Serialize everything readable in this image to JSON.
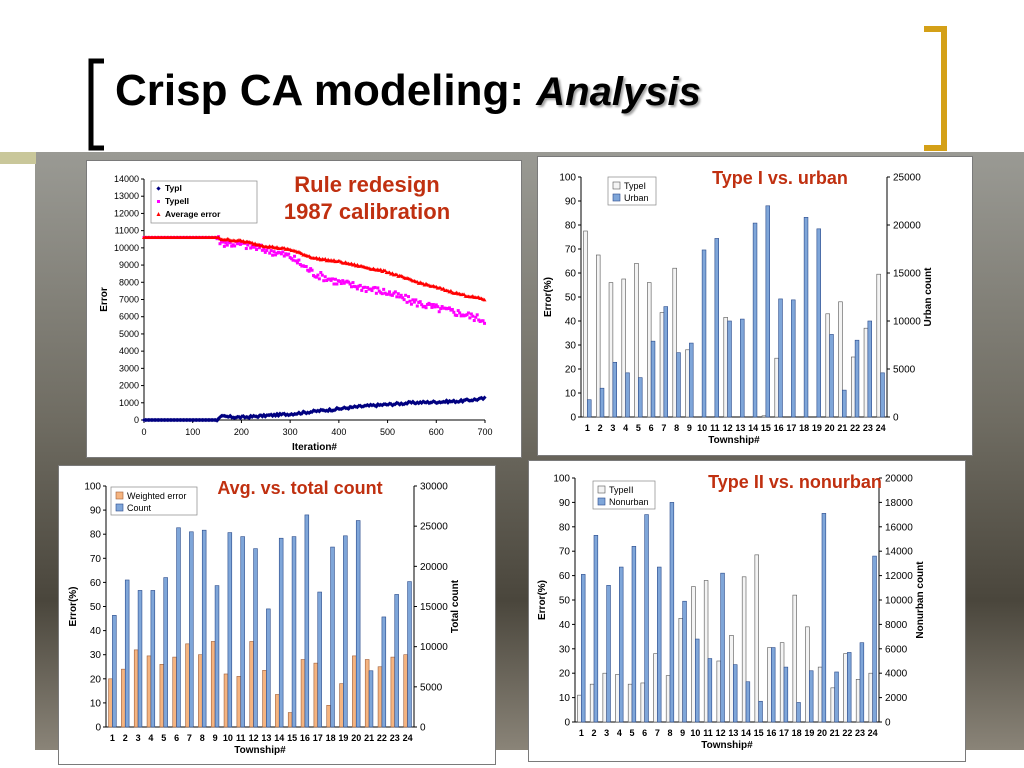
{
  "slide": {
    "title_main": "Crisp CA modeling:",
    "title_emph": "Analysis",
    "colors": {
      "bracket_left": "#000000",
      "bracket_right": "#d4a017",
      "accent": "#c9c79a",
      "red_title": "#c03010"
    }
  },
  "chart_data": [
    {
      "id": "rule-redesign",
      "type": "scatter",
      "title": "Rule redesign\n1987 calibration",
      "xlabel": "Iteration#",
      "ylabel": "Error",
      "xlim": [
        0,
        700
      ],
      "ylim": [
        0,
        14000
      ],
      "xticks": [
        0,
        100,
        200,
        300,
        400,
        500,
        600,
        700
      ],
      "yticks": [
        0,
        1000,
        2000,
        3000,
        4000,
        5000,
        6000,
        7000,
        8000,
        9000,
        10000,
        11000,
        12000,
        13000,
        14000
      ],
      "legend_position": "top-left",
      "series": [
        {
          "name": "TypI",
          "color": "#000080",
          "marker": "diamond",
          "x": [
            0,
            150,
            160,
            200,
            250,
            300,
            350,
            400,
            450,
            500,
            550,
            600,
            650,
            700
          ],
          "y": [
            0,
            0,
            200,
            150,
            250,
            350,
            500,
            650,
            800,
            900,
            1000,
            1050,
            1100,
            1250
          ]
        },
        {
          "name": "TypeII",
          "color": "#ff00ff",
          "marker": "square",
          "x": [
            0,
            150,
            160,
            200,
            250,
            300,
            350,
            400,
            450,
            500,
            550,
            600,
            650,
            700
          ],
          "y": [
            10600,
            10600,
            10300,
            10200,
            9900,
            9500,
            8500,
            8000,
            7700,
            7400,
            6900,
            6500,
            6200,
            5800
          ]
        },
        {
          "name": "Average error",
          "color": "#ff0000",
          "marker": "triangle",
          "x": [
            0,
            150,
            160,
            200,
            250,
            300,
            350,
            400,
            450,
            500,
            550,
            600,
            650,
            700
          ],
          "y": [
            10600,
            10600,
            10500,
            10400,
            10100,
            9900,
            9400,
            9200,
            8900,
            8600,
            8100,
            7700,
            7300,
            7000
          ]
        }
      ]
    },
    {
      "id": "type1-urban",
      "type": "bar",
      "title": "Type I vs. urban",
      "xlabel": "Township#",
      "ylabel": "Error(%)",
      "y2label": "Urban count",
      "ylim": [
        0,
        100
      ],
      "y2lim": [
        0,
        25000
      ],
      "yticks": [
        0,
        10,
        20,
        30,
        40,
        50,
        60,
        70,
        80,
        90,
        100
      ],
      "y2ticks": [
        0,
        5000,
        10000,
        15000,
        20000,
        25000
      ],
      "legend_position": "top-left",
      "categories": [
        "1",
        "2",
        "3",
        "4",
        "5",
        "6",
        "7",
        "8",
        "9",
        "10",
        "11",
        "12",
        "13",
        "14",
        "15",
        "16",
        "17",
        "18",
        "19",
        "20",
        "21",
        "22",
        "23",
        "24"
      ],
      "series": [
        {
          "name": "TypeI",
          "axis": "left",
          "style": "white",
          "values": [
            77.5,
            67.5,
            56,
            57.5,
            64,
            56,
            43.5,
            62,
            28,
            0,
            0,
            41.5,
            0,
            0,
            0.5,
            24.5,
            0,
            0,
            0,
            43,
            48,
            25,
            37,
            59.5
          ]
        },
        {
          "name": "Urban",
          "axis": "right",
          "style": "blue",
          "values": [
            1800,
            3000,
            5700,
            4600,
            4100,
            7900,
            11500,
            6700,
            7700,
            17400,
            18600,
            10000,
            10200,
            20200,
            22000,
            12300,
            12200,
            20800,
            19600,
            8600,
            2800,
            8000,
            10000,
            4600
          ]
        }
      ]
    },
    {
      "id": "avg-total",
      "type": "bar",
      "title": "Avg. vs. total count",
      "xlabel": "Township#",
      "ylabel": "Error(%)",
      "y2label": "Total count",
      "ylim": [
        0,
        100
      ],
      "y2lim": [
        0,
        30000
      ],
      "yticks": [
        0,
        10,
        20,
        30,
        40,
        50,
        60,
        70,
        80,
        90,
        100
      ],
      "y2ticks": [
        0,
        5000,
        10000,
        15000,
        20000,
        25000,
        30000
      ],
      "legend_position": "top-left",
      "categories": [
        "1",
        "2",
        "3",
        "4",
        "5",
        "6",
        "7",
        "8",
        "9",
        "10",
        "11",
        "12",
        "13",
        "14",
        "15",
        "16",
        "17",
        "18",
        "19",
        "20",
        "21",
        "22",
        "23",
        "24"
      ],
      "series": [
        {
          "name": "Weighted error",
          "axis": "left",
          "style": "orange",
          "values": [
            20,
            24,
            32,
            29.5,
            26,
            29,
            34.5,
            30,
            35.5,
            22,
            21,
            35.5,
            23.5,
            13.5,
            6,
            28,
            26.5,
            9,
            18,
            29.5,
            28,
            25,
            29,
            30
          ]
        },
        {
          "name": "Count",
          "axis": "right",
          "style": "blue",
          "values": [
            13900,
            18300,
            17000,
            17000,
            18600,
            24800,
            24300,
            24500,
            17600,
            24200,
            23700,
            22200,
            14700,
            23500,
            23700,
            26400,
            16800,
            22400,
            23800,
            25700,
            7000,
            13700,
            16500,
            18100
          ]
        }
      ]
    },
    {
      "id": "type2-nonurban",
      "type": "bar",
      "title": "Type II vs. nonurban",
      "xlabel": "Township#",
      "ylabel": "Error(%)",
      "y2label": "Nonurban count",
      "ylim": [
        0,
        100
      ],
      "y2lim": [
        0,
        20000
      ],
      "yticks": [
        0,
        10,
        20,
        30,
        40,
        50,
        60,
        70,
        80,
        90,
        100
      ],
      "y2ticks": [
        0,
        2000,
        4000,
        6000,
        8000,
        10000,
        12000,
        14000,
        16000,
        18000,
        20000
      ],
      "legend_position": "top-left",
      "categories": [
        "1",
        "2",
        "3",
        "4",
        "5",
        "6",
        "7",
        "8",
        "9",
        "10",
        "11",
        "12",
        "13",
        "14",
        "15",
        "16",
        "17",
        "18",
        "19",
        "20",
        "21",
        "22",
        "23",
        "24"
      ],
      "series": [
        {
          "name": "TypeII",
          "axis": "left",
          "style": "white",
          "values": [
            11,
            15.5,
            20,
            19.5,
            15.5,
            16,
            28,
            19,
            42.5,
            55.5,
            58,
            25,
            35.5,
            59.5,
            68.5,
            30.5,
            32.5,
            52,
            39,
            22.5,
            14,
            28,
            17.5,
            20
          ]
        },
        {
          "name": "Nonurban",
          "axis": "right",
          "style": "blue",
          "values": [
            12100,
            15300,
            11200,
            12700,
            14400,
            17000,
            12700,
            18000,
            9900,
            6800,
            5200,
            12200,
            4700,
            3300,
            1700,
            6100,
            4500,
            1600,
            4200,
            17100,
            4100,
            5700,
            6500,
            13600
          ]
        }
      ]
    }
  ]
}
